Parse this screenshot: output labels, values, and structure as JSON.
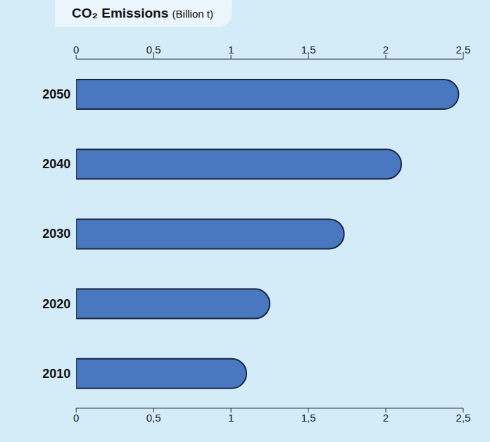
{
  "chart_data": {
    "type": "bar",
    "title": "CO₂ Emissions (Billion t)",
    "orientation": "horizontal",
    "categories": [
      "2010",
      "2020",
      "2030",
      "2040",
      "2050"
    ],
    "values": [
      1.1,
      1.25,
      1.73,
      2.1,
      2.47
    ],
    "color": "#4a78c0",
    "xlim": [
      0,
      2.5
    ],
    "xticks": [
      0,
      {
        "value": 0.5,
        "label": "0,5"
      },
      1,
      {
        "value": 1.5,
        "label": "1,5"
      },
      2,
      {
        "value": 2.5,
        "label": "2,5"
      }
    ],
    "grid": false,
    "data_labels": false
  }
}
